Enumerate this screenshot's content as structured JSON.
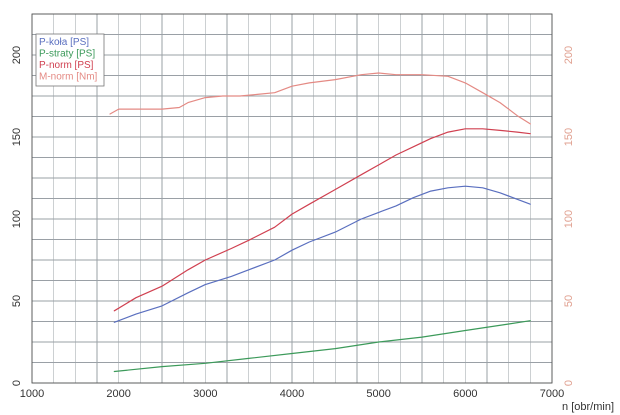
{
  "chart_data": {
    "type": "line",
    "xlabel": "n [obr/min]",
    "ylabel": "",
    "y2label": "",
    "xlim": [
      1000,
      7000
    ],
    "ylim": [
      0,
      225
    ],
    "y2lim": [
      0,
      225
    ],
    "x_ticks": [
      1000,
      2000,
      3000,
      4000,
      5000,
      6000,
      7000
    ],
    "x_tick_labels": [
      "1000",
      "2000",
      "3000",
      "4000",
      "5000",
      "6000",
      "7000"
    ],
    "y_ticks": [
      0,
      50,
      100,
      150,
      200
    ],
    "y_tick_labels": [
      "0",
      "50",
      "100",
      "150",
      "200"
    ],
    "y2_ticks": [
      0,
      50,
      100,
      150,
      200
    ],
    "y2_tick_labels": [
      "0",
      "50",
      "100",
      "150",
      "200"
    ],
    "y2_tick_color": "#e0a090",
    "grid": true,
    "grid_x_step": 250,
    "grid_y_step": 12.5,
    "legend_position": "top-left",
    "series": [
      {
        "name": "P-koła [PS]",
        "color": "#5a6fbf",
        "x": [
          1950,
          2200,
          2500,
          2800,
          3000,
          3300,
          3500,
          3800,
          4000,
          4200,
          4500,
          4800,
          5000,
          5200,
          5400,
          5600,
          5800,
          6000,
          6200,
          6400,
          6600,
          6750
        ],
        "y": [
          37,
          42,
          47,
          55,
          60,
          65,
          69,
          75,
          81,
          86,
          92,
          100,
          104,
          108,
          113,
          117,
          119,
          120,
          119,
          116,
          112,
          109
        ]
      },
      {
        "name": "P-straty [PS]",
        "color": "#3c9a5a",
        "x": [
          1950,
          2500,
          3000,
          3500,
          4000,
          4500,
          5000,
          5500,
          6000,
          6500,
          6750
        ],
        "y": [
          7,
          10,
          12,
          15,
          18,
          21,
          25,
          28,
          32,
          36,
          38
        ]
      },
      {
        "name": "P-norm [PS]",
        "color": "#d04050",
        "x": [
          1950,
          2200,
          2500,
          2800,
          3000,
          3300,
          3500,
          3800,
          4000,
          4200,
          4500,
          4800,
          5000,
          5200,
          5400,
          5600,
          5800,
          6000,
          6200,
          6400,
          6600,
          6750
        ],
        "y": [
          44,
          52,
          59,
          69,
          75,
          82,
          87,
          95,
          103,
          109,
          118,
          127,
          133,
          139,
          144,
          149,
          153,
          155,
          155,
          154,
          153,
          152
        ]
      },
      {
        "name": "M-norm [Nm]",
        "color": "#e48a84",
        "x": [
          1900,
          2000,
          2200,
          2500,
          2700,
          2800,
          3000,
          3200,
          3400,
          3600,
          3800,
          4000,
          4200,
          4500,
          4800,
          5000,
          5200,
          5500,
          5800,
          6000,
          6200,
          6400,
          6600,
          6750
        ],
        "y": [
          164,
          167,
          167,
          167,
          168,
          171,
          174,
          175,
          175,
          176,
          177,
          181,
          183,
          185,
          188,
          189,
          188,
          188,
          187,
          183,
          177,
          171,
          163,
          158
        ]
      }
    ]
  }
}
